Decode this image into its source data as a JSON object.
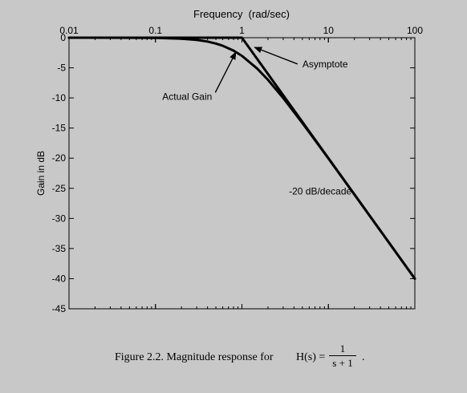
{
  "chart_data": {
    "type": "line",
    "xlabel": "Frequency  (rad/sec)",
    "ylabel": "Gain in dB",
    "xscale": "log",
    "xlim": [
      0.01,
      100
    ],
    "ylim": [
      -45,
      0
    ],
    "x_ticks": [
      "0.01",
      "0.1",
      "1",
      "10",
      "100"
    ],
    "y_ticks": [
      "0",
      "-5",
      "-10",
      "-15",
      "-20",
      "-25",
      "-30",
      "-35",
      "-40",
      "-45"
    ],
    "grid": false,
    "series": [
      {
        "name": "Actual Gain",
        "x": [
          0.01,
          0.05,
          0.1,
          0.2,
          0.3,
          0.4,
          0.5,
          0.6,
          0.8,
          1,
          1.5,
          2,
          3,
          5,
          10,
          20,
          50,
          100
        ],
        "y": [
          0,
          -0.01,
          -0.04,
          -0.17,
          -0.37,
          -0.64,
          -0.97,
          -1.34,
          -2.15,
          -3.01,
          -5.12,
          -6.99,
          -10.0,
          -14.15,
          -20.04,
          -26.03,
          -33.98,
          -40.0
        ]
      },
      {
        "name": "Asymptote",
        "x": [
          0.01,
          1,
          100
        ],
        "y": [
          0,
          0,
          -40
        ]
      }
    ],
    "annotations": [
      {
        "text": "Actual Gain",
        "x": 0.12,
        "y": -10.3,
        "arrow_to": [
          0.85,
          -2.4
        ]
      },
      {
        "text": "Asymptote",
        "x": 5,
        "y": -4.9,
        "arrow_to": [
          1.4,
          -1.6
        ]
      },
      {
        "text": "-20 dB/decade",
        "x": 3.5,
        "y": -26.0
      }
    ]
  },
  "caption": {
    "prefix": "Figure 2.2.  Magnitude response for",
    "lhs": "H(s) =",
    "numerator": "1",
    "denominator": "s + 1",
    "suffix": "."
  }
}
